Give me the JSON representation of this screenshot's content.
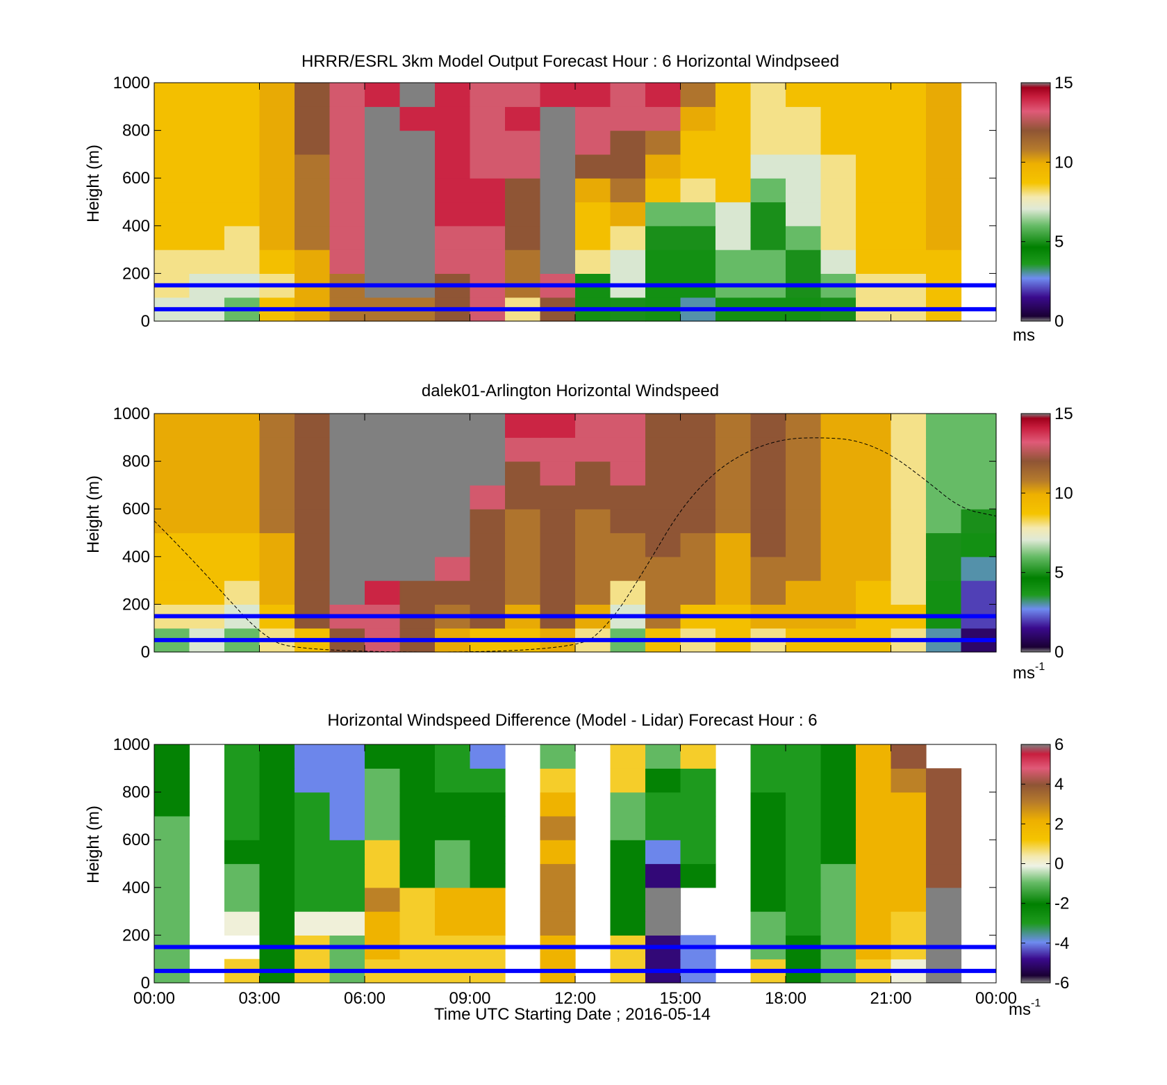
{
  "figure": {
    "xlabel": "Time UTC  Starting Date ; 2016-05-14",
    "x_tick_labels": [
      "00:00",
      "03:00",
      "06:00",
      "09:00",
      "12:00",
      "15:00",
      "18:00",
      "21:00",
      "00:00"
    ],
    "y_tick_labels": [
      "0",
      "200",
      "400",
      "600",
      "800",
      "1000"
    ],
    "ylabel": "Height (m)",
    "reference_lines_height_m": [
      50,
      150
    ],
    "reference_line_color": "#0000ff"
  },
  "chart_data": [
    {
      "type": "heatmap",
      "title": "HRRR/ESRL 3km Model Output   Forecast Hour : 6 Horizontal Windpseed",
      "ylabel": "Height (m)",
      "xlim_hours": [
        0,
        24
      ],
      "ylim": [
        0,
        1000
      ],
      "colorbar": {
        "min": 0,
        "max": 15,
        "ticks": [
          "0",
          "5",
          "10",
          "15"
        ],
        "unit": "ms",
        "palette": "wind"
      },
      "time_columns_hours": [
        0,
        1,
        2,
        3,
        4,
        5,
        6,
        7,
        8,
        9,
        10,
        11,
        12,
        13,
        14,
        15,
        16,
        17,
        18,
        19,
        20,
        21,
        22
      ],
      "column_width_hours": 1,
      "height_bins_m": [
        50,
        150,
        250,
        350,
        450,
        550,
        650,
        750,
        850,
        950
      ],
      "values_ms": [
        [
          7,
          7,
          6,
          9,
          10,
          11,
          11,
          11,
          12,
          13,
          8,
          12,
          4,
          5,
          4,
          3,
          4,
          4,
          4,
          5,
          8,
          8,
          9
        ],
        [
          8,
          7,
          7,
          8,
          10,
          11,
          15,
          15,
          12,
          13,
          11,
          13,
          4,
          7,
          4,
          4,
          6,
          6,
          5,
          6,
          8,
          8,
          9
        ],
        [
          8,
          8,
          8,
          9,
          10,
          13,
          15,
          15,
          13,
          13,
          11,
          15,
          8,
          7,
          4,
          4,
          6,
          6,
          5,
          7,
          9,
          9,
          9
        ],
        [
          9,
          9,
          8,
          10,
          11,
          13,
          15,
          15,
          13,
          13,
          12,
          15,
          9,
          8,
          5,
          5,
          7,
          5,
          6,
          8,
          9,
          9,
          10
        ],
        [
          9,
          9,
          9,
          10,
          11,
          13,
          15,
          15,
          14,
          14,
          12,
          15,
          9,
          10,
          6,
          6,
          7,
          5,
          7,
          8,
          9,
          9,
          10
        ],
        [
          9,
          9,
          9,
          10,
          11,
          13,
          15,
          15,
          14,
          14,
          12,
          15,
          10,
          11,
          9,
          8,
          9,
          6,
          7,
          8,
          9,
          9,
          10
        ],
        [
          9,
          9,
          9,
          10,
          11,
          13,
          15,
          15,
          14,
          13,
          13,
          15,
          12,
          12,
          10,
          9,
          9,
          7,
          7,
          8,
          9,
          9,
          10
        ],
        [
          9,
          9,
          9,
          10,
          12,
          13,
          15,
          15,
          14,
          13,
          13,
          15,
          13,
          12,
          11,
          9,
          9,
          8,
          8,
          9,
          9,
          9,
          10
        ],
        [
          9,
          9,
          9,
          10,
          12,
          13,
          15,
          14,
          14,
          13,
          14,
          15,
          13,
          13,
          13,
          10,
          9,
          8,
          8,
          9,
          9,
          9,
          10
        ],
        [
          9,
          9,
          9,
          10,
          12,
          13,
          14,
          15,
          14,
          13,
          13,
          14,
          14,
          13,
          14,
          11,
          9,
          8,
          9,
          9,
          9,
          9,
          10
        ]
      ]
    },
    {
      "type": "heatmap",
      "title": "dalek01-Arlington  Horizontal Windspeed",
      "ylabel": "Height (m)",
      "xlim_hours": [
        0,
        24
      ],
      "ylim": [
        0,
        1000
      ],
      "colorbar": {
        "min": 0,
        "max": 15,
        "ticks": [
          "0",
          "5",
          "10",
          "15"
        ],
        "unit": "ms",
        "unit_sup": "-1",
        "palette": "wind"
      },
      "time_columns_hours": [
        0,
        1,
        2,
        3,
        4,
        5,
        6,
        7,
        8,
        9,
        10,
        11,
        12,
        13,
        14,
        15,
        16,
        17,
        18,
        19,
        20,
        21,
        22,
        23
      ],
      "column_width_hours": 1,
      "height_bins_m": [
        50,
        150,
        250,
        350,
        450,
        550,
        650,
        750,
        850,
        950
      ],
      "values_ms": [
        [
          6,
          7,
          6,
          8,
          9,
          12,
          13,
          12,
          10,
          9,
          9,
          10,
          8,
          6,
          9,
          8,
          9,
          8,
          9,
          9,
          9,
          8,
          3,
          1
        ],
        [
          8,
          8,
          7,
          9,
          12,
          13,
          13,
          12,
          11,
          12,
          10,
          12,
          10,
          7,
          11,
          9,
          9,
          10,
          10,
          10,
          9,
          9,
          4,
          2
        ],
        [
          9,
          9,
          8,
          10,
          12,
          16,
          14,
          12,
          12,
          12,
          11,
          12,
          11,
          8,
          11,
          11,
          10,
          11,
          10,
          10,
          9,
          8,
          4,
          2
        ],
        [
          9,
          9,
          9,
          10,
          12,
          16,
          16,
          16,
          13,
          12,
          11,
          12,
          11,
          11,
          11,
          11,
          10,
          11,
          11,
          10,
          10,
          8,
          5,
          3
        ],
        [
          9,
          9,
          9,
          10,
          12,
          16,
          16,
          16,
          16,
          12,
          11,
          12,
          11,
          11,
          12,
          11,
          10,
          12,
          11,
          10,
          10,
          8,
          5,
          4
        ],
        [
          10,
          10,
          10,
          11,
          12,
          16,
          16,
          16,
          16,
          12,
          11,
          12,
          11,
          12,
          12,
          12,
          11,
          12,
          11,
          10,
          10,
          8,
          6,
          5
        ],
        [
          10,
          10,
          10,
          11,
          12,
          16,
          16,
          16,
          16,
          13,
          12,
          12,
          12,
          12,
          12,
          12,
          11,
          12,
          11,
          10,
          10,
          8,
          6,
          6
        ],
        [
          10,
          10,
          10,
          11,
          12,
          16,
          16,
          16,
          16,
          16,
          12,
          13,
          12,
          13,
          12,
          12,
          11,
          12,
          11,
          10,
          10,
          8,
          6,
          6
        ],
        [
          10,
          10,
          10,
          11,
          12,
          16,
          16,
          16,
          16,
          16,
          13,
          13,
          13,
          13,
          12,
          12,
          11,
          12,
          11,
          10,
          10,
          8,
          6,
          6
        ],
        [
          10,
          10,
          10,
          11,
          12,
          16,
          16,
          16,
          16,
          16,
          14,
          14,
          13,
          13,
          12,
          12,
          11,
          12,
          11,
          10,
          10,
          8,
          6,
          6
        ]
      ],
      "mixing_layer_height_m": {
        "hours": [
          0,
          1,
          2,
          3,
          4,
          12,
          13,
          14,
          15,
          16,
          17,
          18,
          19,
          20,
          21,
          22,
          23,
          24
        ],
        "height": [
          550,
          400,
          240,
          80,
          0,
          0,
          120,
          350,
          600,
          760,
          850,
          895,
          900,
          890,
          830,
          720,
          600,
          570
        ]
      }
    },
    {
      "type": "heatmap",
      "title": "Horizontal Windspeed Difference (Model - Lidar) Forecast Hour : 6",
      "ylabel": "Height (m)",
      "xlim_hours": [
        0,
        24
      ],
      "ylim": [
        0,
        1000
      ],
      "colorbar": {
        "min": -6,
        "max": 6,
        "ticks": [
          "-6",
          "-4",
          "-2",
          "0",
          "2",
          "4",
          "6"
        ],
        "unit": "ms",
        "unit_sup": "-1",
        "palette": "diff"
      },
      "time_columns_hours": [
        0,
        1,
        2,
        3,
        4,
        5,
        6,
        7,
        8,
        9,
        10,
        11,
        12,
        13,
        14,
        15,
        16,
        17,
        18,
        19,
        20,
        21,
        22
      ],
      "column_width_hours": 1,
      "height_bins_m": [
        50,
        150,
        250,
        350,
        450,
        550,
        650,
        750,
        850,
        950
      ],
      "values_ms": [
        [
          -1,
          null,
          1,
          -2,
          1,
          -1,
          1,
          1,
          1,
          1,
          null,
          2,
          null,
          1,
          -5,
          -4,
          null,
          1,
          -2,
          -1,
          1,
          0,
          6
        ],
        [
          -1,
          null,
          null,
          -2,
          1,
          -1,
          2,
          1,
          1,
          1,
          null,
          2,
          null,
          1,
          -5,
          -4,
          null,
          -1,
          -2,
          -1,
          2,
          1,
          6
        ],
        [
          -1,
          null,
          0,
          -2,
          0,
          0,
          2,
          1,
          2,
          2,
          null,
          3,
          null,
          -2,
          6,
          null,
          null,
          -1,
          -3,
          -1,
          2,
          1,
          6
        ],
        [
          -1,
          null,
          -1,
          -2,
          -3,
          -3,
          3,
          1,
          2,
          2,
          null,
          3,
          null,
          -2,
          6,
          null,
          null,
          -2,
          -3,
          -1,
          2,
          2,
          6
        ],
        [
          -1,
          null,
          -1,
          -2,
          -3,
          -3,
          1,
          -2,
          -1,
          -2,
          null,
          3,
          null,
          -2,
          -5,
          -2,
          null,
          -2,
          -3,
          -1,
          2,
          2,
          4
        ],
        [
          -1,
          null,
          -2,
          -2,
          -3,
          -3,
          1,
          -2,
          -1,
          -2,
          null,
          2,
          null,
          -2,
          -4,
          -3,
          null,
          -2,
          -3,
          -2,
          2,
          2,
          4
        ],
        [
          -1,
          null,
          -3,
          -2,
          -3,
          -4,
          -1,
          -2,
          -2,
          -2,
          null,
          3,
          null,
          -1,
          -3,
          -3,
          null,
          -2,
          -3,
          -2,
          2,
          2,
          4
        ],
        [
          -2,
          null,
          -3,
          -2,
          -3,
          -4,
          -1,
          -2,
          -2,
          -2,
          null,
          2,
          null,
          -1,
          -3,
          -3,
          null,
          -2,
          -3,
          -2,
          2,
          2,
          4
        ],
        [
          -2,
          null,
          -3,
          -2,
          -4,
          -4,
          -1,
          -2,
          -3,
          -3,
          null,
          1,
          null,
          1,
          -2,
          -3,
          null,
          -3,
          -3,
          -2,
          2,
          3,
          4
        ],
        [
          -2,
          null,
          -3,
          -2,
          -4,
          -4,
          -2,
          -2,
          -3,
          -4,
          null,
          -1,
          null,
          1,
          -1,
          1,
          null,
          -3,
          -3,
          -2,
          2,
          4,
          null
        ]
      ]
    }
  ]
}
